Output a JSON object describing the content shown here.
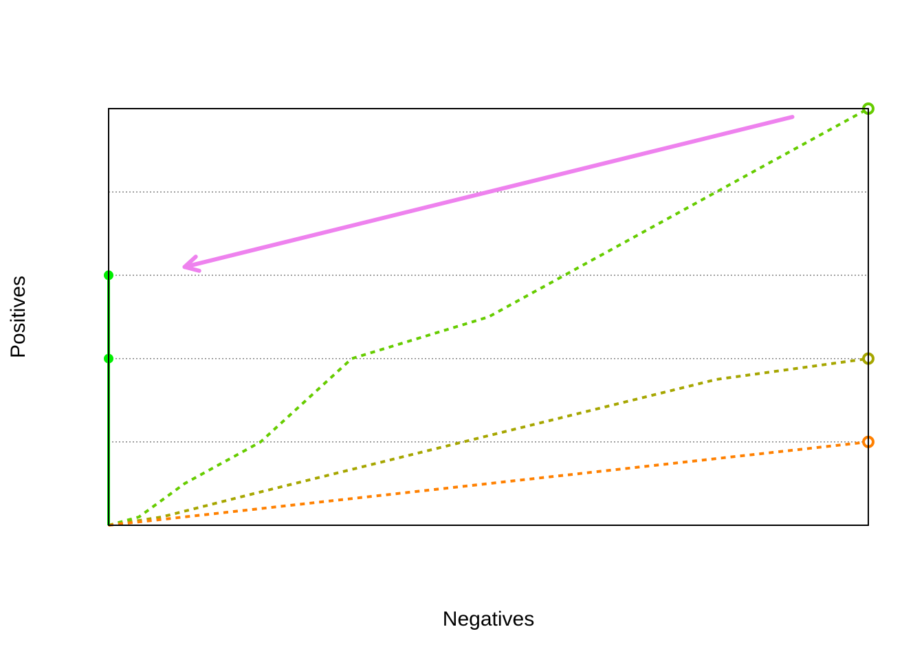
{
  "chart_data": {
    "type": "line",
    "title": "",
    "xlabel": "Negatives",
    "ylabel": "Positives",
    "xlim": [
      0,
      1
    ],
    "ylim": [
      0,
      1
    ],
    "grid": {
      "horizontal": true,
      "vertical": false,
      "style": "dotted",
      "color": "#808080",
      "y_values": [
        0.2,
        0.4,
        0.6,
        0.8
      ]
    },
    "axes": {
      "tick_labels_shown": false
    },
    "series": [
      {
        "color": "#66CC00",
        "linestyle": "dashed",
        "points": [
          [
            0.0,
            0.0
          ],
          [
            0.04,
            0.02
          ],
          [
            0.1,
            0.1
          ],
          [
            0.2,
            0.2
          ],
          [
            0.32,
            0.4
          ],
          [
            0.5,
            0.5
          ],
          [
            0.71,
            0.71
          ],
          [
            0.9,
            0.9
          ],
          [
            1.0,
            1.0
          ]
        ],
        "end_marker": "circle"
      },
      {
        "color": "#A6A600",
        "linestyle": "dashed",
        "points": [
          [
            0.0,
            0.0
          ],
          [
            0.07,
            0.02
          ],
          [
            0.2,
            0.08
          ],
          [
            0.4,
            0.17
          ],
          [
            0.6,
            0.26
          ],
          [
            0.8,
            0.35
          ],
          [
            1.0,
            0.4
          ]
        ],
        "end_marker": "circle"
      },
      {
        "color": "#FF8000",
        "linestyle": "dashed",
        "points": [
          [
            0.0,
            0.0
          ],
          [
            0.1,
            0.02
          ],
          [
            0.3,
            0.06
          ],
          [
            0.5,
            0.1
          ],
          [
            0.7,
            0.14
          ],
          [
            0.9,
            0.18
          ],
          [
            1.0,
            0.2
          ]
        ],
        "end_marker": "circle"
      },
      {
        "color": "#00EE00",
        "linestyle": "solid",
        "points": [
          [
            0.0,
            0.0
          ],
          [
            0.0,
            0.6
          ]
        ],
        "markers": [
          [
            0.0,
            0.6
          ],
          [
            0.0,
            0.4
          ]
        ]
      }
    ],
    "annotations": [
      {
        "type": "arrow",
        "color": "#EE82EE",
        "from": [
          0.9,
          0.98
        ],
        "to": [
          0.1,
          0.62
        ]
      }
    ]
  }
}
